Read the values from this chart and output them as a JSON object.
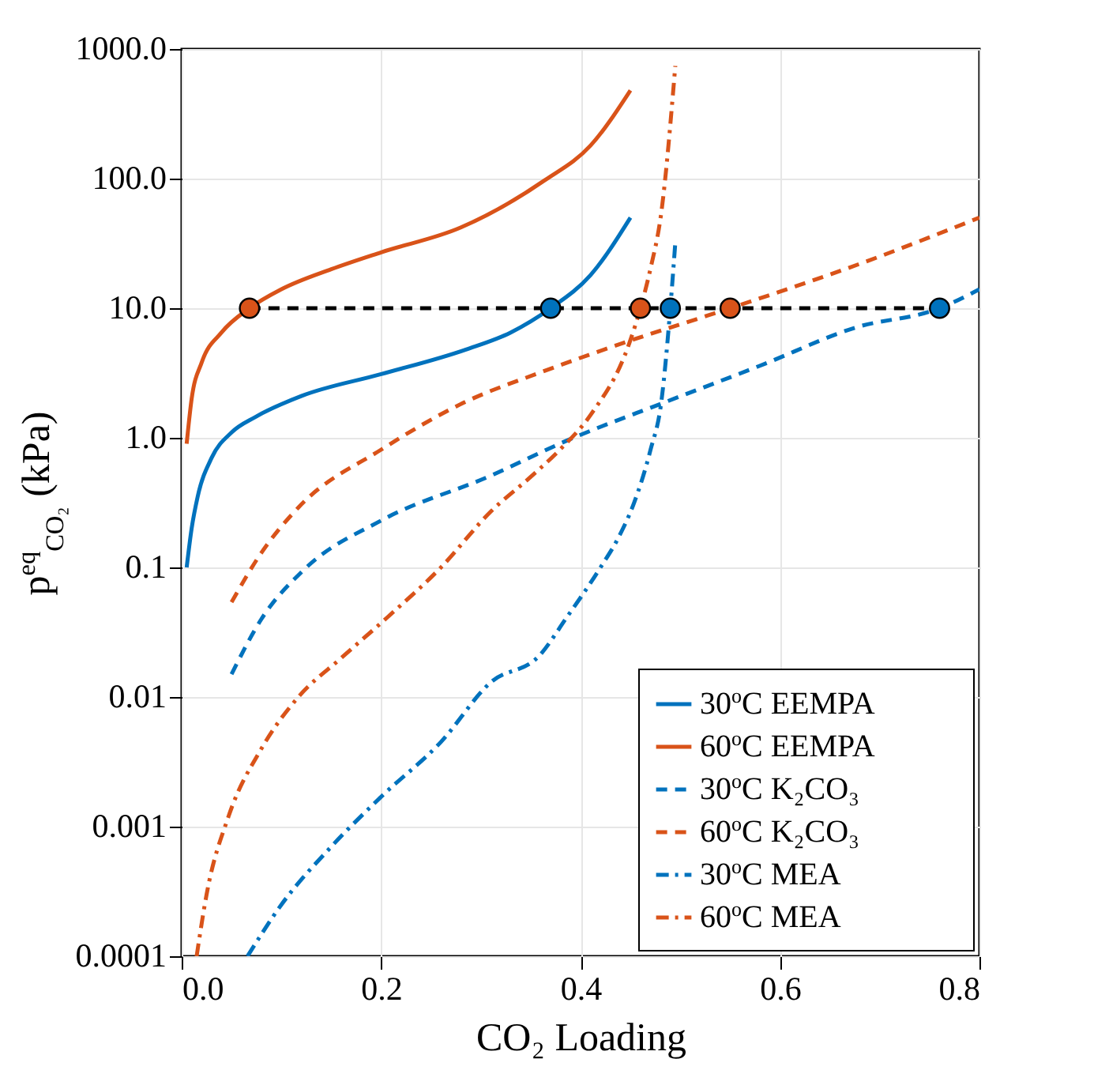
{
  "chart_data": {
    "type": "line",
    "xlabel": "CO₂ Loading",
    "ylabel": "p$^{eq}$$_{CO₂}$  (kPa)",
    "log": "y",
    "grid": true,
    "legend": "bottom right",
    "xlim": [
      0,
      0.8
    ],
    "xticks": [
      {
        "value": 0,
        "label": "0.0"
      },
      0.2,
      0.4,
      0.6,
      0.8
    ],
    "ylim": [
      0.0001,
      1000
    ],
    "yticks": [
      0.0001,
      0.001,
      0.01,
      0.1,
      {
        "value": 1,
        "label": "1.0"
      },
      {
        "value": 10,
        "label": "10.0"
      },
      {
        "value": 100,
        "label": "100.0"
      },
      {
        "value": 1000,
        "label": "1000.0"
      }
    ],
    "series": [
      {
        "name": "30$^{o}$C EEMPA",
        "color": "#0072bd",
        "line_style": "solid",
        "x": [
          0.005,
          0.01,
          0.016,
          0.03,
          0.05,
          0.074,
          0.12,
          0.2,
          0.285,
          0.33,
          0.37,
          0.41,
          0.45
        ],
        "values": [
          0.1,
          0.2,
          0.35,
          0.7,
          1.1,
          1.45,
          2.1,
          3.1,
          4.8,
          6.5,
          10,
          18,
          50
        ]
      },
      {
        "name": "60$^{o}$C EEMPA",
        "color": "#d95319",
        "line_style": "solid",
        "x": [
          0.005,
          0.01,
          0.02,
          0.04,
          0.068,
          0.1,
          0.15,
          0.2,
          0.28,
          0.364,
          0.41,
          0.45
        ],
        "values": [
          0.9,
          2,
          3.8,
          6.5,
          10,
          14,
          20,
          27,
          42,
          97,
          180,
          480
        ]
      },
      {
        "name": "30$^{o}$C K₂CO₃",
        "color": "#0072bd",
        "line_style": "dashed",
        "x": [
          0.05,
          0.08,
          0.122,
          0.2,
          0.31,
          0.386,
          0.486,
          0.58,
          0.676,
          0.76,
          0.8
        ],
        "values": [
          0.015,
          0.04,
          0.095,
          0.23,
          0.51,
          0.95,
          1.9,
          3.6,
          7.1,
          10,
          14
        ]
      },
      {
        "name": "60$^{o}$C K₂CO₃",
        "color": "#d95319",
        "line_style": "dashed",
        "x": [
          0.05,
          0.08,
          0.117,
          0.2,
          0.285,
          0.36,
          0.443,
          0.55,
          0.68,
          0.8
        ],
        "values": [
          0.054,
          0.13,
          0.29,
          0.81,
          1.9,
          3.2,
          5.4,
          10,
          22,
          50
        ]
      },
      {
        "name": "30$^{o}$C MEA",
        "color": "#0072bd",
        "line_style": "dashdot",
        "x": [
          0.066,
          0.1,
          0.15,
          0.2,
          0.26,
          0.31,
          0.359,
          0.386,
          0.42,
          0.438,
          0.454,
          0.47,
          0.481,
          0.49,
          0.495
        ],
        "values": [
          0.0001,
          0.00025,
          0.0007,
          0.0017,
          0.0045,
          0.013,
          0.021,
          0.041,
          0.1,
          0.17,
          0.32,
          0.8,
          1.9,
          10,
          32
        ]
      },
      {
        "name": "60$^{o}$C MEA",
        "color": "#d95319",
        "line_style": "dashdot",
        "x": [
          0.015,
          0.025,
          0.047,
          0.08,
          0.117,
          0.16,
          0.206,
          0.26,
          0.31,
          0.35,
          0.38,
          0.41,
          0.449,
          0.46,
          0.47,
          0.481,
          0.495
        ],
        "values": [
          0.0001,
          0.0003,
          0.0012,
          0.004,
          0.01,
          0.02,
          0.041,
          0.1,
          0.27,
          0.5,
          0.82,
          1.5,
          5.4,
          10,
          20,
          55,
          740
        ]
      },
      {
        "type": "line",
        "color": "#000000",
        "line_style": "dashed",
        "x": [
          0.068,
          0.76
        ],
        "values": [
          10,
          10
        ]
      },
      {
        "type": "scatter",
        "color": "#d95319",
        "marker": "circle",
        "x": [
          0.068,
          0.46,
          0.55
        ],
        "values": [
          10,
          10,
          10
        ]
      },
      {
        "type": "scatter",
        "color": "#0072bd",
        "marker": "circle",
        "x": [
          0.37,
          0.49,
          0.76
        ],
        "values": [
          10,
          10,
          10
        ]
      }
    ]
  }
}
